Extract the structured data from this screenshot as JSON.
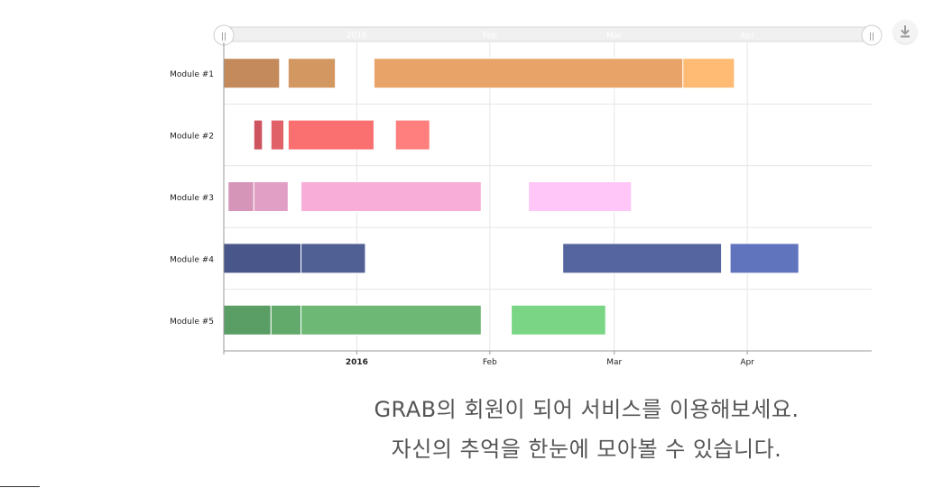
{
  "chart_data": {
    "type": "timeline",
    "rows": [
      "Module #1",
      "Module #2",
      "Module #3",
      "Module #4",
      "Module #5"
    ],
    "x_range": [
      "2015-12-01",
      "2016-04-30"
    ],
    "x_ticks": [
      {
        "date": "2016-01-01",
        "label": "2016",
        "bold": true
      },
      {
        "date": "2016-02-01",
        "label": "Feb",
        "bold": false
      },
      {
        "date": "2016-03-01",
        "label": "Mar",
        "bold": false
      },
      {
        "date": "2016-04-01",
        "label": "Apr",
        "bold": false
      }
    ],
    "grid_dates": [
      "2015-12-01",
      "2016-01-01",
      "2016-02-01",
      "2016-03-01",
      "2016-04-01"
    ],
    "segments": [
      {
        "row": 0,
        "start": "2015-12-01",
        "end": "2015-12-14",
        "color": "#c48a5c"
      },
      {
        "row": 0,
        "start": "2015-12-16",
        "end": "2015-12-27",
        "color": "#d39762"
      },
      {
        "row": 0,
        "start": "2016-01-05",
        "end": "2016-03-17",
        "color": "#e8a468"
      },
      {
        "row": 0,
        "start": "2016-03-17",
        "end": "2016-03-29",
        "color": "#ffbb73"
      },
      {
        "row": 1,
        "start": "2015-12-08",
        "end": "2015-12-10",
        "color": "#cd545f"
      },
      {
        "row": 1,
        "start": "2015-12-12",
        "end": "2015-12-15",
        "color": "#e06268"
      },
      {
        "row": 1,
        "start": "2015-12-16",
        "end": "2016-01-05",
        "color": "#fa7070"
      },
      {
        "row": 1,
        "start": "2016-01-10",
        "end": "2016-01-18",
        "color": "#ff7f7f"
      },
      {
        "row": 2,
        "start": "2015-12-02",
        "end": "2015-12-08",
        "color": "#d495b8"
      },
      {
        "row": 2,
        "start": "2015-12-08",
        "end": "2015-12-16",
        "color": "#e29fc5"
      },
      {
        "row": 2,
        "start": "2015-12-19",
        "end": "2016-01-30",
        "color": "#f8acd8"
      },
      {
        "row": 2,
        "start": "2016-02-10",
        "end": "2016-03-05",
        "color": "#ffc6f7"
      },
      {
        "row": 3,
        "start": "2015-12-01",
        "end": "2015-12-19",
        "color": "#48568a"
      },
      {
        "row": 3,
        "start": "2015-12-19",
        "end": "2016-01-03",
        "color": "#505f94"
      },
      {
        "row": 3,
        "start": "2016-02-18",
        "end": "2016-03-26",
        "color": "#55659f"
      },
      {
        "row": 3,
        "start": "2016-03-28",
        "end": "2016-04-13",
        "color": "#6073bd"
      },
      {
        "row": 4,
        "start": "2015-12-01",
        "end": "2015-12-12",
        "color": "#5a9e65"
      },
      {
        "row": 4,
        "start": "2015-12-12",
        "end": "2015-12-19",
        "color": "#62aa6b"
      },
      {
        "row": 4,
        "start": "2015-12-19",
        "end": "2016-01-30",
        "color": "#6db875"
      },
      {
        "row": 4,
        "start": "2016-02-06",
        "end": "2016-02-28",
        "color": "#7ad684"
      }
    ]
  },
  "navigator": {
    "labels": [
      "2016",
      "Feb",
      "Mar",
      "Apr"
    ],
    "left_handle": "||",
    "right_handle": "||"
  },
  "toolbar": {
    "export_icon": "download-icon"
  },
  "caption": {
    "line1": "GRAB의 회원이 되어 서비스를 이용해보세요.",
    "line2": "자신의 추억을 한눈에 모아볼 수 있습니다."
  }
}
